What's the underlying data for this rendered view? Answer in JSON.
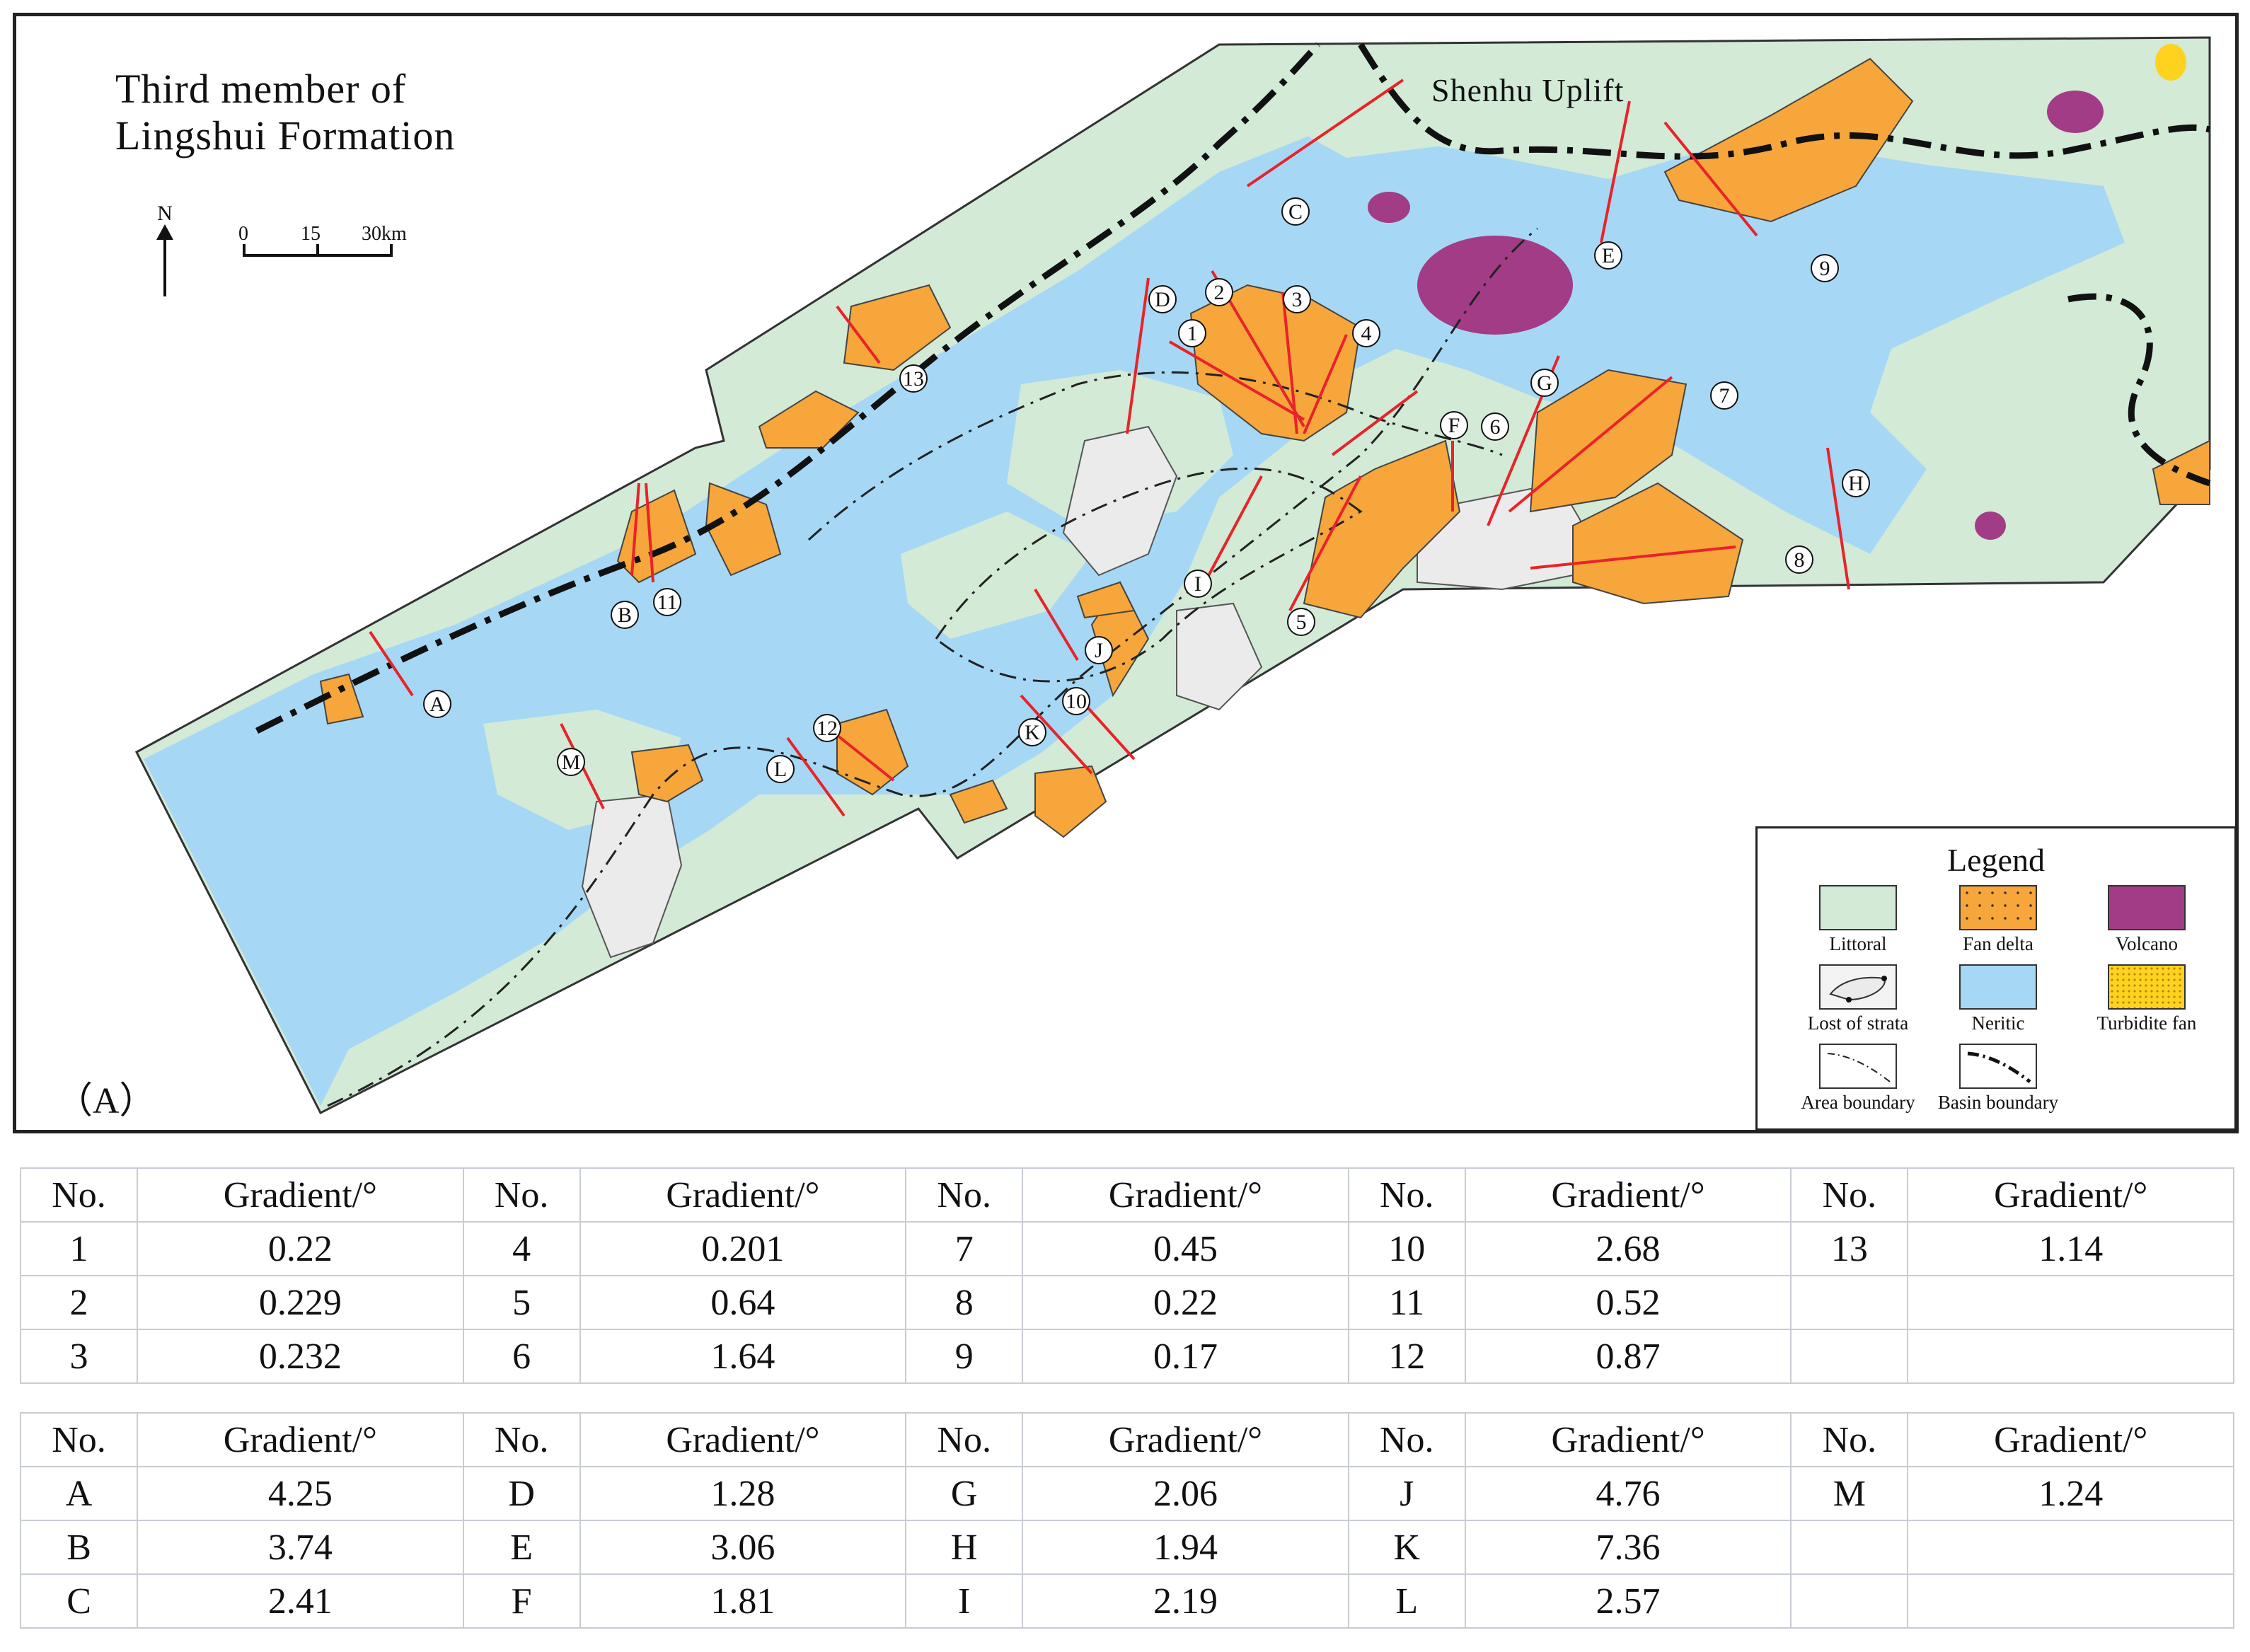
{
  "map": {
    "title_line1": "Third member of",
    "title_line2": "Lingshui Formation",
    "north_label": "N",
    "scale_labels": [
      "0",
      "15",
      "30km"
    ],
    "uplift_label": "Shenhu Uplift",
    "panel_label": "（A）",
    "colors": {
      "littoral": "#d2ead6",
      "neritic": "#a6d8f5",
      "fan_delta": "#f6a63b",
      "volcano": "#a33c86",
      "turbidite_fan": "#ffd21f",
      "lost_strata": "#ebebeb",
      "profile_line": "#e8232a"
    },
    "numbered_labels": [
      "1",
      "2",
      "3",
      "4",
      "5",
      "6",
      "7",
      "8",
      "9",
      "10",
      "11",
      "12",
      "13"
    ],
    "letter_labels": [
      "A",
      "B",
      "C",
      "D",
      "E",
      "F",
      "G",
      "H",
      "I",
      "J",
      "K",
      "L",
      "M"
    ]
  },
  "legend": {
    "title": "Legend",
    "items": [
      {
        "label": "Littoral",
        "icon": "littoral-swatch"
      },
      {
        "label": "Fan  delta",
        "icon": "fan-delta-swatch"
      },
      {
        "label": "Volcano",
        "icon": "volcano-swatch"
      },
      {
        "label": "Lost of strata",
        "icon": "lost-strata-swatch"
      },
      {
        "label": "Neritic",
        "icon": "neritic-swatch"
      },
      {
        "label": "Turbidite fan",
        "icon": "turbidite-swatch"
      },
      {
        "label": "Area boundary",
        "icon": "area-boundary-line"
      },
      {
        "label": "Basin boundary",
        "icon": "basin-boundary-line"
      }
    ]
  },
  "table_numbers": {
    "header": [
      "No.",
      "Gradient/°",
      "No.",
      "Gradient/°",
      "No.",
      "Gradient/°",
      "No.",
      "Gradient/°",
      "No.",
      "Gradient/°"
    ],
    "rows": [
      [
        "1",
        "0.22",
        "4",
        "0.201",
        "7",
        "0.45",
        "10",
        "2.68",
        "13",
        "1.14"
      ],
      [
        "2",
        "0.229",
        "5",
        "0.64",
        "8",
        "0.22",
        "11",
        "0.52",
        "",
        ""
      ],
      [
        "3",
        "0.232",
        "6",
        "1.64",
        "9",
        "0.17",
        "12",
        "0.87",
        "",
        ""
      ]
    ]
  },
  "table_letters": {
    "header": [
      "No.",
      "Gradient/°",
      "No.",
      "Gradient/°",
      "No.",
      "Gradient/°",
      "No.",
      "Gradient/°",
      "No.",
      "Gradient/°"
    ],
    "rows": [
      [
        "A",
        "4.25",
        "D",
        "1.28",
        "G",
        "2.06",
        "J",
        "4.76",
        "M",
        "1.24"
      ],
      [
        "B",
        "3.74",
        "E",
        "3.06",
        "H",
        "1.94",
        "K",
        "7.36",
        "",
        ""
      ],
      [
        "C",
        "2.41",
        "F",
        "1.81",
        "I",
        "2.19",
        "L",
        "2.57",
        "",
        ""
      ]
    ]
  }
}
